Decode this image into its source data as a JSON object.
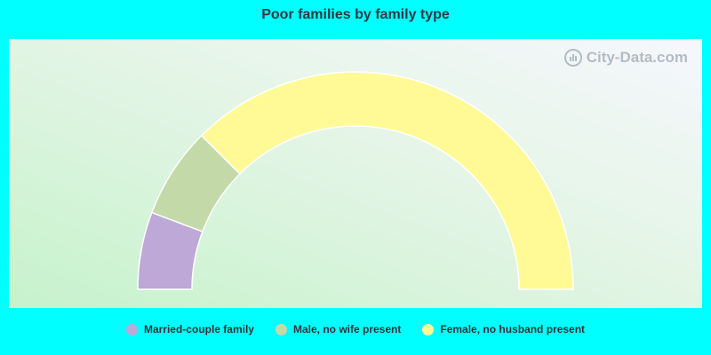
{
  "chart_data": {
    "type": "pie",
    "subtype": "semicircle-donut",
    "title": "Poor families by family type",
    "categories": [
      "Married-couple family",
      "Male, no wife present",
      "Female, no husband present"
    ],
    "values": [
      11.5,
      13.5,
      75.0
    ],
    "colors": [
      "#bda8d8",
      "#c4d9a8",
      "#fffa96"
    ],
    "legend": "bottom"
  },
  "watermark": {
    "text": "City-Data.com"
  }
}
